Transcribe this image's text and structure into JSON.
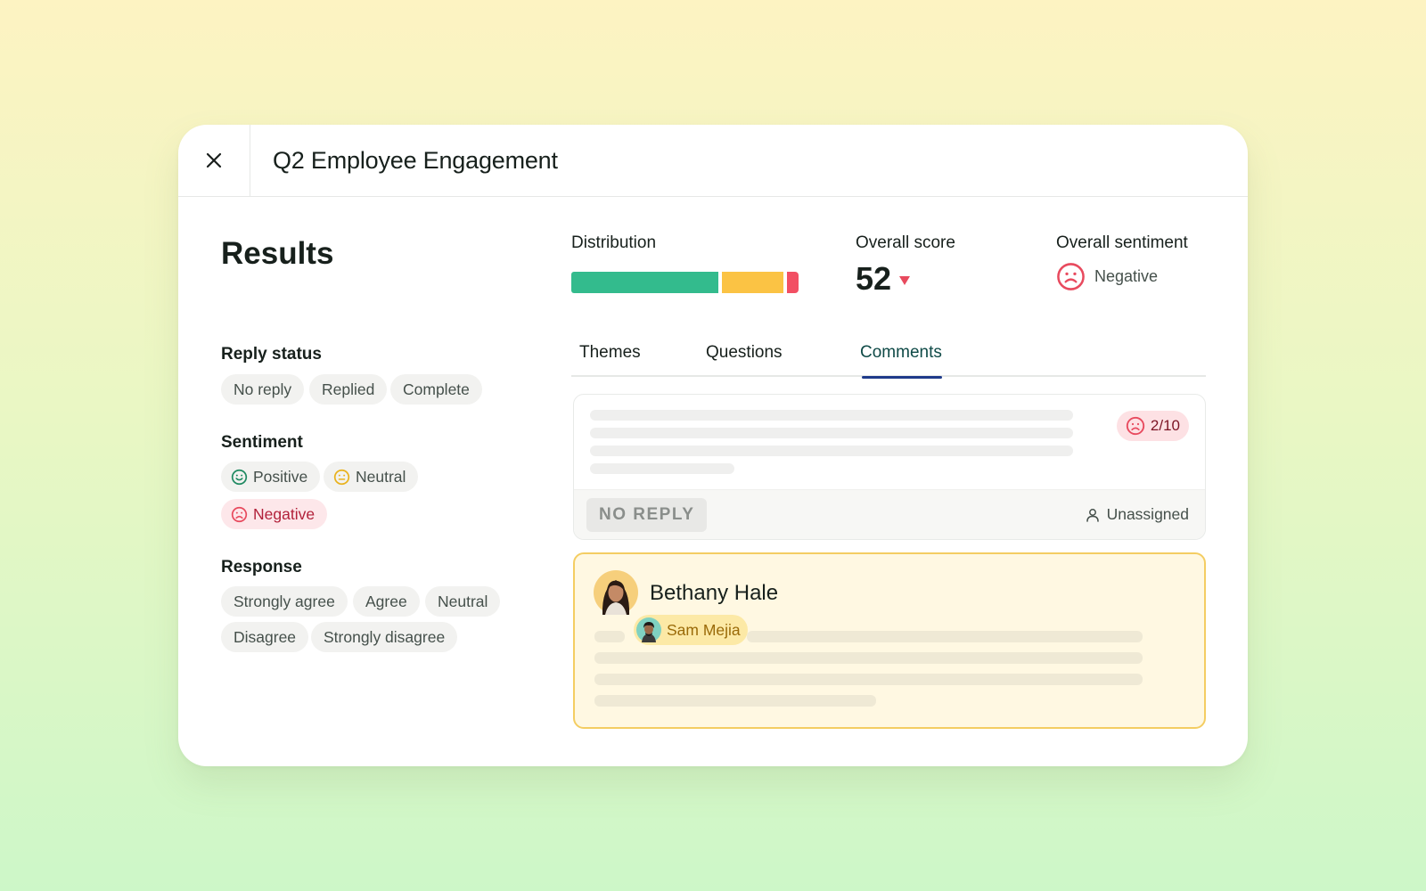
{
  "header": {
    "title": "Q2 Employee Engagement"
  },
  "page": {
    "title": "Results"
  },
  "filters": {
    "reply_status": {
      "label": "Reply status",
      "options": [
        "No reply",
        "Replied",
        "Complete"
      ]
    },
    "sentiment": {
      "label": "Sentiment",
      "options": [
        "Positive",
        "Neutral",
        "Negative"
      ],
      "selected": "Negative"
    },
    "response": {
      "label": "Response",
      "options": [
        "Strongly agree",
        "Agree",
        "Neutral",
        "Disagree",
        "Strongly disagree"
      ]
    }
  },
  "metrics": {
    "distribution": {
      "label": "Distribution",
      "segments": [
        {
          "name": "positive",
          "fraction": 0.65,
          "color": "#33bb8d"
        },
        {
          "name": "neutral",
          "fraction": 0.27,
          "color": "#fbc344"
        },
        {
          "name": "negative",
          "fraction": 0.05,
          "color": "#f24f63"
        }
      ]
    },
    "overall_score": {
      "label": "Overall score",
      "value": "52",
      "trend": "down",
      "trend_color": "#e84a5e"
    },
    "overall_sentiment": {
      "label": "Overall sentiment",
      "value": "Negative",
      "icon": "frown-icon"
    }
  },
  "tabs": [
    {
      "label": "Themes",
      "active": false
    },
    {
      "label": "Questions",
      "active": false
    },
    {
      "label": "Comments",
      "active": true
    }
  ],
  "comments": [
    {
      "score": "2/10",
      "sentiment": "negative",
      "status": "NO REPLY",
      "assignee": "Unassigned"
    },
    {
      "author": "Bethany Hale",
      "mention": "Sam Mejia"
    }
  ]
}
